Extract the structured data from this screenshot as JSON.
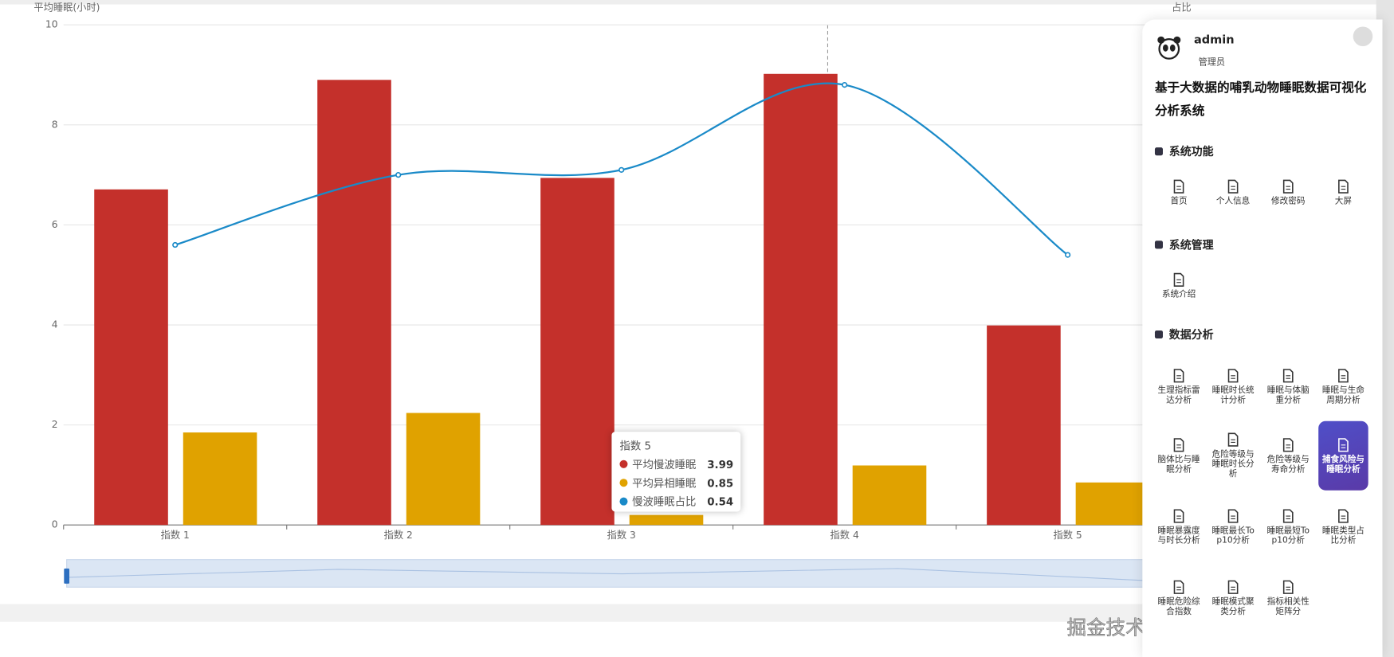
{
  "chart_data": {
    "type": "bar",
    "y_axis_title": "平均睡眠(小时)",
    "y2_axis_title": "占比",
    "categories": [
      "指数 1",
      "指数 2",
      "指数 3",
      "指数 4",
      "指数 5"
    ],
    "series": [
      {
        "name": "平均慢波睡眠",
        "color": "#c4302b",
        "values": [
          6.71,
          8.9,
          6.94,
          9.02,
          3.99
        ]
      },
      {
        "name": "平均异相睡眠",
        "color": "#e0a200",
        "values": [
          1.85,
          2.24,
          0.2,
          1.19,
          0.85
        ]
      },
      {
        "name": "慢波睡眠占比",
        "type": "line",
        "axis": "y2",
        "color": "#1a8ac8",
        "values": [
          0.56,
          0.7,
          0.71,
          0.88,
          0.54
        ]
      }
    ],
    "ylim": [
      0,
      10
    ],
    "yticks": [
      0,
      2,
      4,
      6,
      8,
      10
    ],
    "y2lim": [
      0,
      1
    ],
    "grid": true,
    "tooltip": {
      "category": 4
    }
  },
  "sidebar": {
    "user": {
      "name": "admin",
      "role": "管理员"
    },
    "title": "基于大数据的哺乳动物睡眠数据可视化分析系统",
    "sections": [
      {
        "title": "系统功能",
        "items": [
          "首页",
          "个人信息",
          "修改密码",
          "大屏"
        ]
      },
      {
        "title": "系统管理",
        "items": [
          "系统介绍"
        ]
      },
      {
        "title": "数据分析",
        "active_item": 7,
        "items": [
          "生理指标雷达分析",
          "睡眠时长统计分析",
          "睡眠与体脑重分析",
          "睡眠与生命周期分析",
          "脑体比与睡眠分析",
          "危险等级与睡眠时长分析",
          "危险等级与寿命分析",
          "捕食风险与睡眠分析",
          "睡眠暴露度与时长分析",
          "睡眠最长Top10分析",
          "睡眠最短Top10分析",
          "睡眠类型占比分析",
          "睡眠危险综合指数",
          "睡眠模式聚类分析",
          "指标相关性矩阵分"
        ]
      }
    ]
  },
  "watermark": "掘金技术社区 @ 计算机编程果茶熊"
}
